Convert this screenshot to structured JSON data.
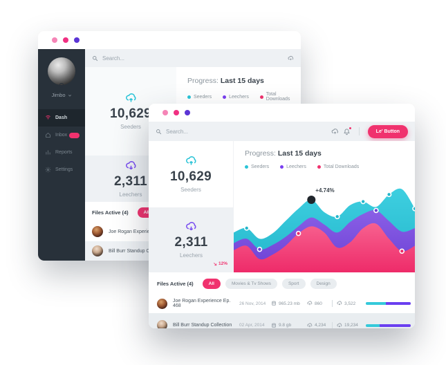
{
  "colors": {
    "teal": "#2bc4d7",
    "purple": "#7a4ff0",
    "pink": "#f0326e",
    "sidebar_dark": "#28313a",
    "text_dark": "#39424b",
    "text_muted": "#8b959d"
  },
  "icons": {
    "search": "magnifier",
    "cloud_upload": "cloud-arrow-up",
    "cloud_download": "cloud-arrow-down",
    "bell": "notification-bell",
    "database": "disk-size",
    "eye": "watch",
    "trash": "delete",
    "chevron_down": "expand",
    "arrow_down_right": "decline"
  },
  "window_back": {
    "dots": [
      "#f585b7",
      "#f03082",
      "#5b35d5"
    ],
    "sidebar": {
      "username": "Jimbo",
      "items": [
        {
          "label": "Dash",
          "active": true
        },
        {
          "label": "Inbox",
          "has_badge": true
        },
        {
          "label": "Reports"
        },
        {
          "label": "Settings"
        }
      ]
    },
    "search_placeholder": "Search...",
    "stats": {
      "seeders": {
        "value": "10,629",
        "label": "Seeders"
      },
      "leechers": {
        "value": "2,311",
        "label": "Leechers"
      }
    },
    "progress": {
      "prefix": "Progress:",
      "range": "Last 15 days"
    },
    "legend": [
      {
        "label": "Seeders",
        "color": "#2bc4d7"
      },
      {
        "label": "Leechers",
        "color": "#7a3ff0"
      },
      {
        "label": "Total Downloads",
        "color": "#f0326e"
      }
    ],
    "files_heading": "Files Active (4)",
    "filters": [
      "All",
      "Movies & Tv Shows"
    ],
    "files": [
      {
        "name": "Joe Rogan Experience Ep. 468"
      },
      {
        "name": "Bill Burr Standup Collection"
      }
    ]
  },
  "window_front": {
    "dots": [
      "#f585b7",
      "#f03082",
      "#5b35d5"
    ],
    "search_placeholder": "Search...",
    "button_label": "Le' Button",
    "stats": {
      "seeders": {
        "value": "10,629",
        "label": "Seeders"
      },
      "leechers": {
        "value": "2,311",
        "label": "Leechers",
        "delta": "12%"
      }
    },
    "progress": {
      "prefix": "Progress:",
      "range": "Last 15 days"
    },
    "legend": [
      {
        "label": "Seeders",
        "color": "#2bc4d7"
      },
      {
        "label": "Leechers",
        "color": "#7a3ff0"
      },
      {
        "label": "Total Downloads",
        "color": "#f0326e"
      }
    ],
    "files_heading": "Files Active (4)",
    "filters": [
      "All",
      "Movies & Tv Shows",
      "Sport",
      "Design"
    ],
    "files": [
      {
        "name": "Joe Rogan Experience Ep. 468",
        "date": "26 Nov, 2014",
        "size": "965.23 mb",
        "seeders": "860",
        "leechers": "3,522",
        "progress_teal": 45,
        "progress_purple": 55
      },
      {
        "name": "Bill Burr Standup Collection",
        "date": "02 Apr, 2014",
        "size": "9.8 gb",
        "seeders": "4,234",
        "leechers": "19,234",
        "progress_teal": 30,
        "progress_purple": 70
      }
    ]
  },
  "chart_data": {
    "type": "area",
    "title": "Progress: Last 15 days",
    "x": [
      1,
      2,
      3,
      4,
      5,
      6,
      7,
      8,
      9,
      10,
      11,
      12,
      13,
      14,
      15
    ],
    "series": [
      {
        "name": "Seeders",
        "color": "#3ecfe0",
        "color2": "#23b6cb",
        "values": [
          45,
          50,
          38,
          44,
          58,
          72,
          82,
          68,
          63,
          76,
          80,
          74,
          88,
          94,
          72
        ]
      },
      {
        "name": "Leechers",
        "color": "#8a5fe6",
        "color2": "#6b40d4",
        "values": [
          33,
          38,
          26,
          31,
          40,
          52,
          62,
          54,
          45,
          57,
          66,
          70,
          58,
          46,
          50
        ]
      },
      {
        "name": "Total Downloads",
        "color": "#f7618f",
        "color2": "#ee2b69",
        "values": [
          25,
          30,
          15,
          20,
          30,
          44,
          52,
          45,
          28,
          34,
          50,
          55,
          38,
          24,
          30
        ]
      }
    ],
    "annotation": {
      "label": "+4.74%",
      "series": 0,
      "index": 6,
      "dot_color": "#20262c"
    },
    "markers": [
      {
        "series": 0,
        "index": 1
      },
      {
        "series": 0,
        "index": 8
      },
      {
        "series": 0,
        "index": 10
      },
      {
        "series": 0,
        "index": 12
      },
      {
        "series": 0,
        "index": 14
      },
      {
        "series": 1,
        "index": 2
      },
      {
        "series": 1,
        "index": 11
      },
      {
        "series": 2,
        "index": 5
      },
      {
        "series": 2,
        "index": 13
      }
    ],
    "ylim": [
      0,
      100
    ],
    "grid": false,
    "legend_position": "top"
  }
}
